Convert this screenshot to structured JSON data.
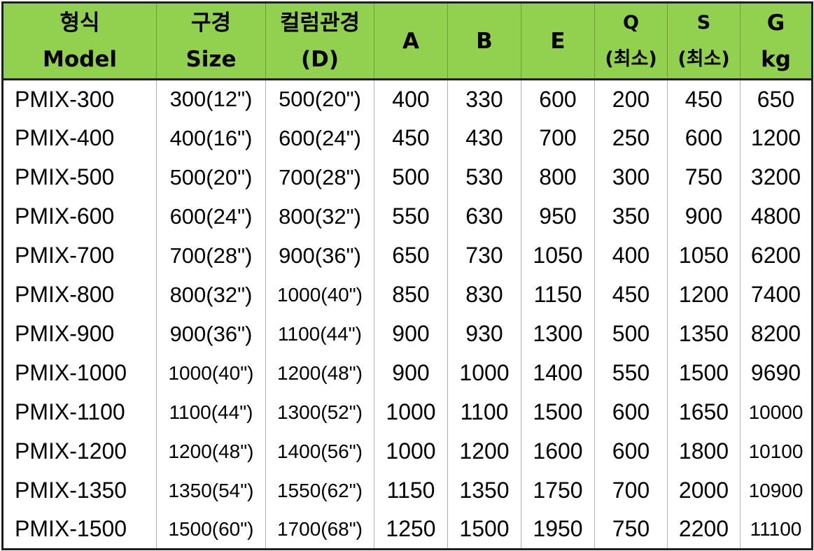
{
  "headers": [
    {
      "line1": "형식",
      "line2": "Model"
    },
    {
      "line1": "구경",
      "line2": "Size"
    },
    {
      "line1": "컬럼관경",
      "line2": "(D)"
    },
    {
      "line1": "A",
      "line2": ""
    },
    {
      "line1": "B",
      "line2": ""
    },
    {
      "line1": "E",
      "line2": ""
    },
    {
      "line1": "Q",
      "line2": "(최소)"
    },
    {
      "line1": "S",
      "line2": "(최소)"
    },
    {
      "line1": "G",
      "line2": "kg"
    }
  ],
  "rows": [
    [
      "PMIX-300",
      "300(12\")",
      "500(20\")",
      "400",
      "330",
      "600",
      "200",
      "450",
      "650"
    ],
    [
      "PMIX-400",
      "400(16\")",
      "600(24\")",
      "450",
      "430",
      "700",
      "250",
      "600",
      "1200"
    ],
    [
      "PMIX-500",
      "500(20\")",
      "700(28\")",
      "500",
      "530",
      "800",
      "300",
      "750",
      "3200"
    ],
    [
      "PMIX-600",
      "600(24\")",
      "800(32\")",
      "550",
      "630",
      "950",
      "350",
      "900",
      "4800"
    ],
    [
      "PMIX-700",
      "700(28\")",
      "900(36\")",
      "650",
      "730",
      "1050",
      "400",
      "1050",
      "6200"
    ],
    [
      "PMIX-800",
      "800(32\")",
      "1000(40\")",
      "850",
      "830",
      "1150",
      "450",
      "1200",
      "7400"
    ],
    [
      "PMIX-900",
      "900(36\")",
      "1100(44\")",
      "900",
      "930",
      "1300",
      "500",
      "1350",
      "8200"
    ],
    [
      "PMIX-1000",
      "1000(40\")",
      "1200(48\")",
      "900",
      "1000",
      "1400",
      "550",
      "1500",
      "9690"
    ],
    [
      "PMIX-1100",
      "1100(44\")",
      "1300(52\")",
      "1000",
      "1100",
      "1500",
      "600",
      "1650",
      "10000"
    ],
    [
      "PMIX-1200",
      "1200(48\")",
      "1400(56\")",
      "1000",
      "1200",
      "1600",
      "600",
      "1800",
      "10100"
    ],
    [
      "PMIX-1350",
      "1350(54\")",
      "1550(62\")",
      "1150",
      "1350",
      "1750",
      "700",
      "2000",
      "10900"
    ],
    [
      "PMIX-1500",
      "1500(60\")",
      "1700(68\")",
      "1250",
      "1500",
      "1950",
      "750",
      "2200",
      "11100"
    ]
  ],
  "colors": {
    "header_bg": "#92d050",
    "border": "#1e1e1e",
    "grid": "#b0b0b0"
  }
}
